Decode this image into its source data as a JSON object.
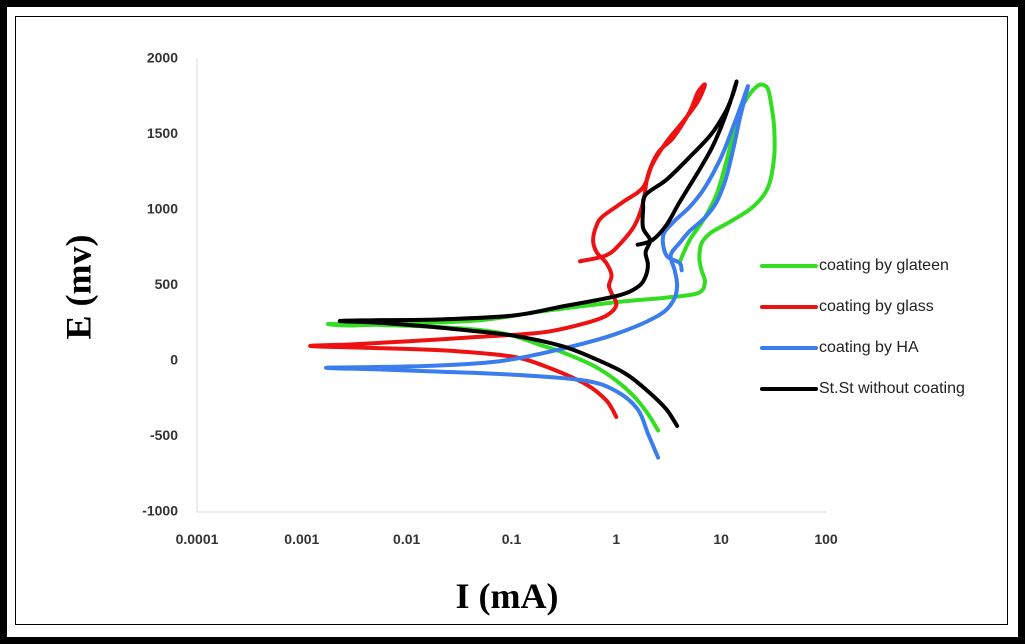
{
  "chart_data": {
    "type": "line",
    "title": "",
    "xlabel": "I (mA)",
    "ylabel": "E (mv)",
    "xscale": "log",
    "xlim": [
      0.0001,
      100
    ],
    "ylim": [
      -1000,
      2000
    ],
    "xticks": [
      "0.0001",
      "0.001",
      "0.01",
      "0.1",
      "1",
      "10",
      "100"
    ],
    "yticks": [
      "-1000",
      "-500",
      "0",
      "500",
      "1000",
      "1500",
      "2000"
    ],
    "grid": false,
    "legend_position": "right",
    "series": [
      {
        "name": "coating by glateen",
        "color": "#33dd22",
        "points": [
          [
            2.5,
            -460
          ],
          [
            2.0,
            -350
          ],
          [
            1.5,
            -240
          ],
          [
            1.0,
            -130
          ],
          [
            0.6,
            -30
          ],
          [
            0.3,
            60
          ],
          [
            0.2,
            100
          ],
          [
            0.1,
            170
          ],
          [
            0.05,
            205
          ],
          [
            0.02,
            225
          ],
          [
            0.005,
            240
          ],
          [
            0.0018,
            245
          ],
          [
            0.003,
            235
          ],
          [
            0.01,
            250
          ],
          [
            0.05,
            270
          ],
          [
            0.2,
            330
          ],
          [
            1.0,
            390
          ],
          [
            3.0,
            420
          ],
          [
            6.0,
            450
          ],
          [
            7.0,
            520
          ],
          [
            6.5,
            600
          ],
          [
            6.2,
            680
          ],
          [
            6.5,
            780
          ],
          [
            8.0,
            850
          ],
          [
            12,
            920
          ],
          [
            20,
            1020
          ],
          [
            28,
            1150
          ],
          [
            32,
            1350
          ],
          [
            32,
            1550
          ],
          [
            30,
            1700
          ],
          [
            28,
            1800
          ],
          [
            25,
            1830
          ],
          [
            22,
            1820
          ],
          [
            18,
            1750
          ],
          [
            15,
            1650
          ],
          [
            13,
            1500
          ],
          [
            11,
            1300
          ],
          [
            9,
            1100
          ],
          [
            7,
            950
          ],
          [
            5,
            800
          ],
          [
            4,
            650
          ]
        ]
      },
      {
        "name": "coating by glass",
        "color": "#ee1111",
        "points": [
          [
            1.0,
            -370
          ],
          [
            0.8,
            -260
          ],
          [
            0.5,
            -150
          ],
          [
            0.2,
            -30
          ],
          [
            0.1,
            30
          ],
          [
            0.03,
            65
          ],
          [
            0.01,
            80
          ],
          [
            0.003,
            90
          ],
          [
            0.0012,
            100
          ],
          [
            0.003,
            110
          ],
          [
            0.01,
            130
          ],
          [
            0.05,
            160
          ],
          [
            0.2,
            190
          ],
          [
            0.5,
            250
          ],
          [
            0.8,
            300
          ],
          [
            1.0,
            370
          ],
          [
            0.9,
            450
          ],
          [
            0.85,
            500
          ],
          [
            0.9,
            570
          ],
          [
            0.8,
            650
          ],
          [
            0.65,
            720
          ],
          [
            0.6,
            800
          ],
          [
            0.65,
            900
          ],
          [
            0.75,
            960
          ],
          [
            1.2,
            1060
          ],
          [
            1.8,
            1150
          ],
          [
            2.2,
            1300
          ],
          [
            3,
            1450
          ],
          [
            4.5,
            1600
          ],
          [
            6,
            1720
          ],
          [
            7,
            1830
          ],
          [
            6,
            1780
          ],
          [
            5,
            1650
          ],
          [
            3.5,
            1480
          ],
          [
            2.5,
            1380
          ],
          [
            2,
            1230
          ],
          [
            1.8,
            1050
          ],
          [
            1.5,
            900
          ],
          [
            1.1,
            780
          ],
          [
            0.8,
            700
          ],
          [
            0.45,
            660
          ]
        ]
      },
      {
        "name": "coating by HA",
        "color": "#3b7ded",
        "points": [
          [
            2.5,
            -640
          ],
          [
            2.0,
            -480
          ],
          [
            1.6,
            -320
          ],
          [
            1.0,
            -200
          ],
          [
            0.5,
            -130
          ],
          [
            0.1,
            -90
          ],
          [
            0.02,
            -70
          ],
          [
            0.005,
            -55
          ],
          [
            0.0017,
            -45
          ],
          [
            0.005,
            -40
          ],
          [
            0.02,
            -30
          ],
          [
            0.08,
            0
          ],
          [
            0.3,
            80
          ],
          [
            1.0,
            180
          ],
          [
            2.5,
            300
          ],
          [
            3.5,
            400
          ],
          [
            3.8,
            500
          ],
          [
            3.6,
            600
          ],
          [
            3.3,
            700
          ],
          [
            4.0,
            780
          ],
          [
            5.0,
            860
          ],
          [
            7.0,
            950
          ],
          [
            9,
            1050
          ],
          [
            11,
            1200
          ],
          [
            13,
            1400
          ],
          [
            15,
            1600
          ],
          [
            17,
            1750
          ],
          [
            18,
            1820
          ],
          [
            16,
            1720
          ],
          [
            13,
            1550
          ],
          [
            10,
            1350
          ],
          [
            7,
            1150
          ],
          [
            5,
            1020
          ],
          [
            3.5,
            920
          ],
          [
            2.8,
            830
          ],
          [
            3.0,
            700
          ],
          [
            4.0,
            650
          ],
          [
            4.2,
            600
          ]
        ]
      },
      {
        "name": "St.St without coating",
        "color": "#000000",
        "points": [
          [
            3.8,
            -430
          ],
          [
            3.0,
            -320
          ],
          [
            2.0,
            -200
          ],
          [
            1.2,
            -80
          ],
          [
            0.6,
            20
          ],
          [
            0.3,
            100
          ],
          [
            0.1,
            170
          ],
          [
            0.03,
            210
          ],
          [
            0.01,
            240
          ],
          [
            0.005,
            255
          ],
          [
            0.0023,
            265
          ],
          [
            0.005,
            270
          ],
          [
            0.02,
            275
          ],
          [
            0.1,
            300
          ],
          [
            0.3,
            360
          ],
          [
            1.0,
            430
          ],
          [
            1.6,
            490
          ],
          [
            1.9,
            560
          ],
          [
            2.0,
            640
          ],
          [
            1.9,
            720
          ],
          [
            2.1,
            800
          ],
          [
            1.8,
            880
          ],
          [
            1.8,
            1000
          ],
          [
            1.9,
            1100
          ],
          [
            3,
            1200
          ],
          [
            5,
            1350
          ],
          [
            8,
            1500
          ],
          [
            11,
            1650
          ],
          [
            13,
            1770
          ],
          [
            14,
            1850
          ],
          [
            12,
            1700
          ],
          [
            10,
            1550
          ],
          [
            8,
            1400
          ],
          [
            6,
            1250
          ],
          [
            4,
            1050
          ],
          [
            3,
            900
          ],
          [
            2.2,
            800
          ],
          [
            1.6,
            770
          ]
        ]
      }
    ]
  }
}
